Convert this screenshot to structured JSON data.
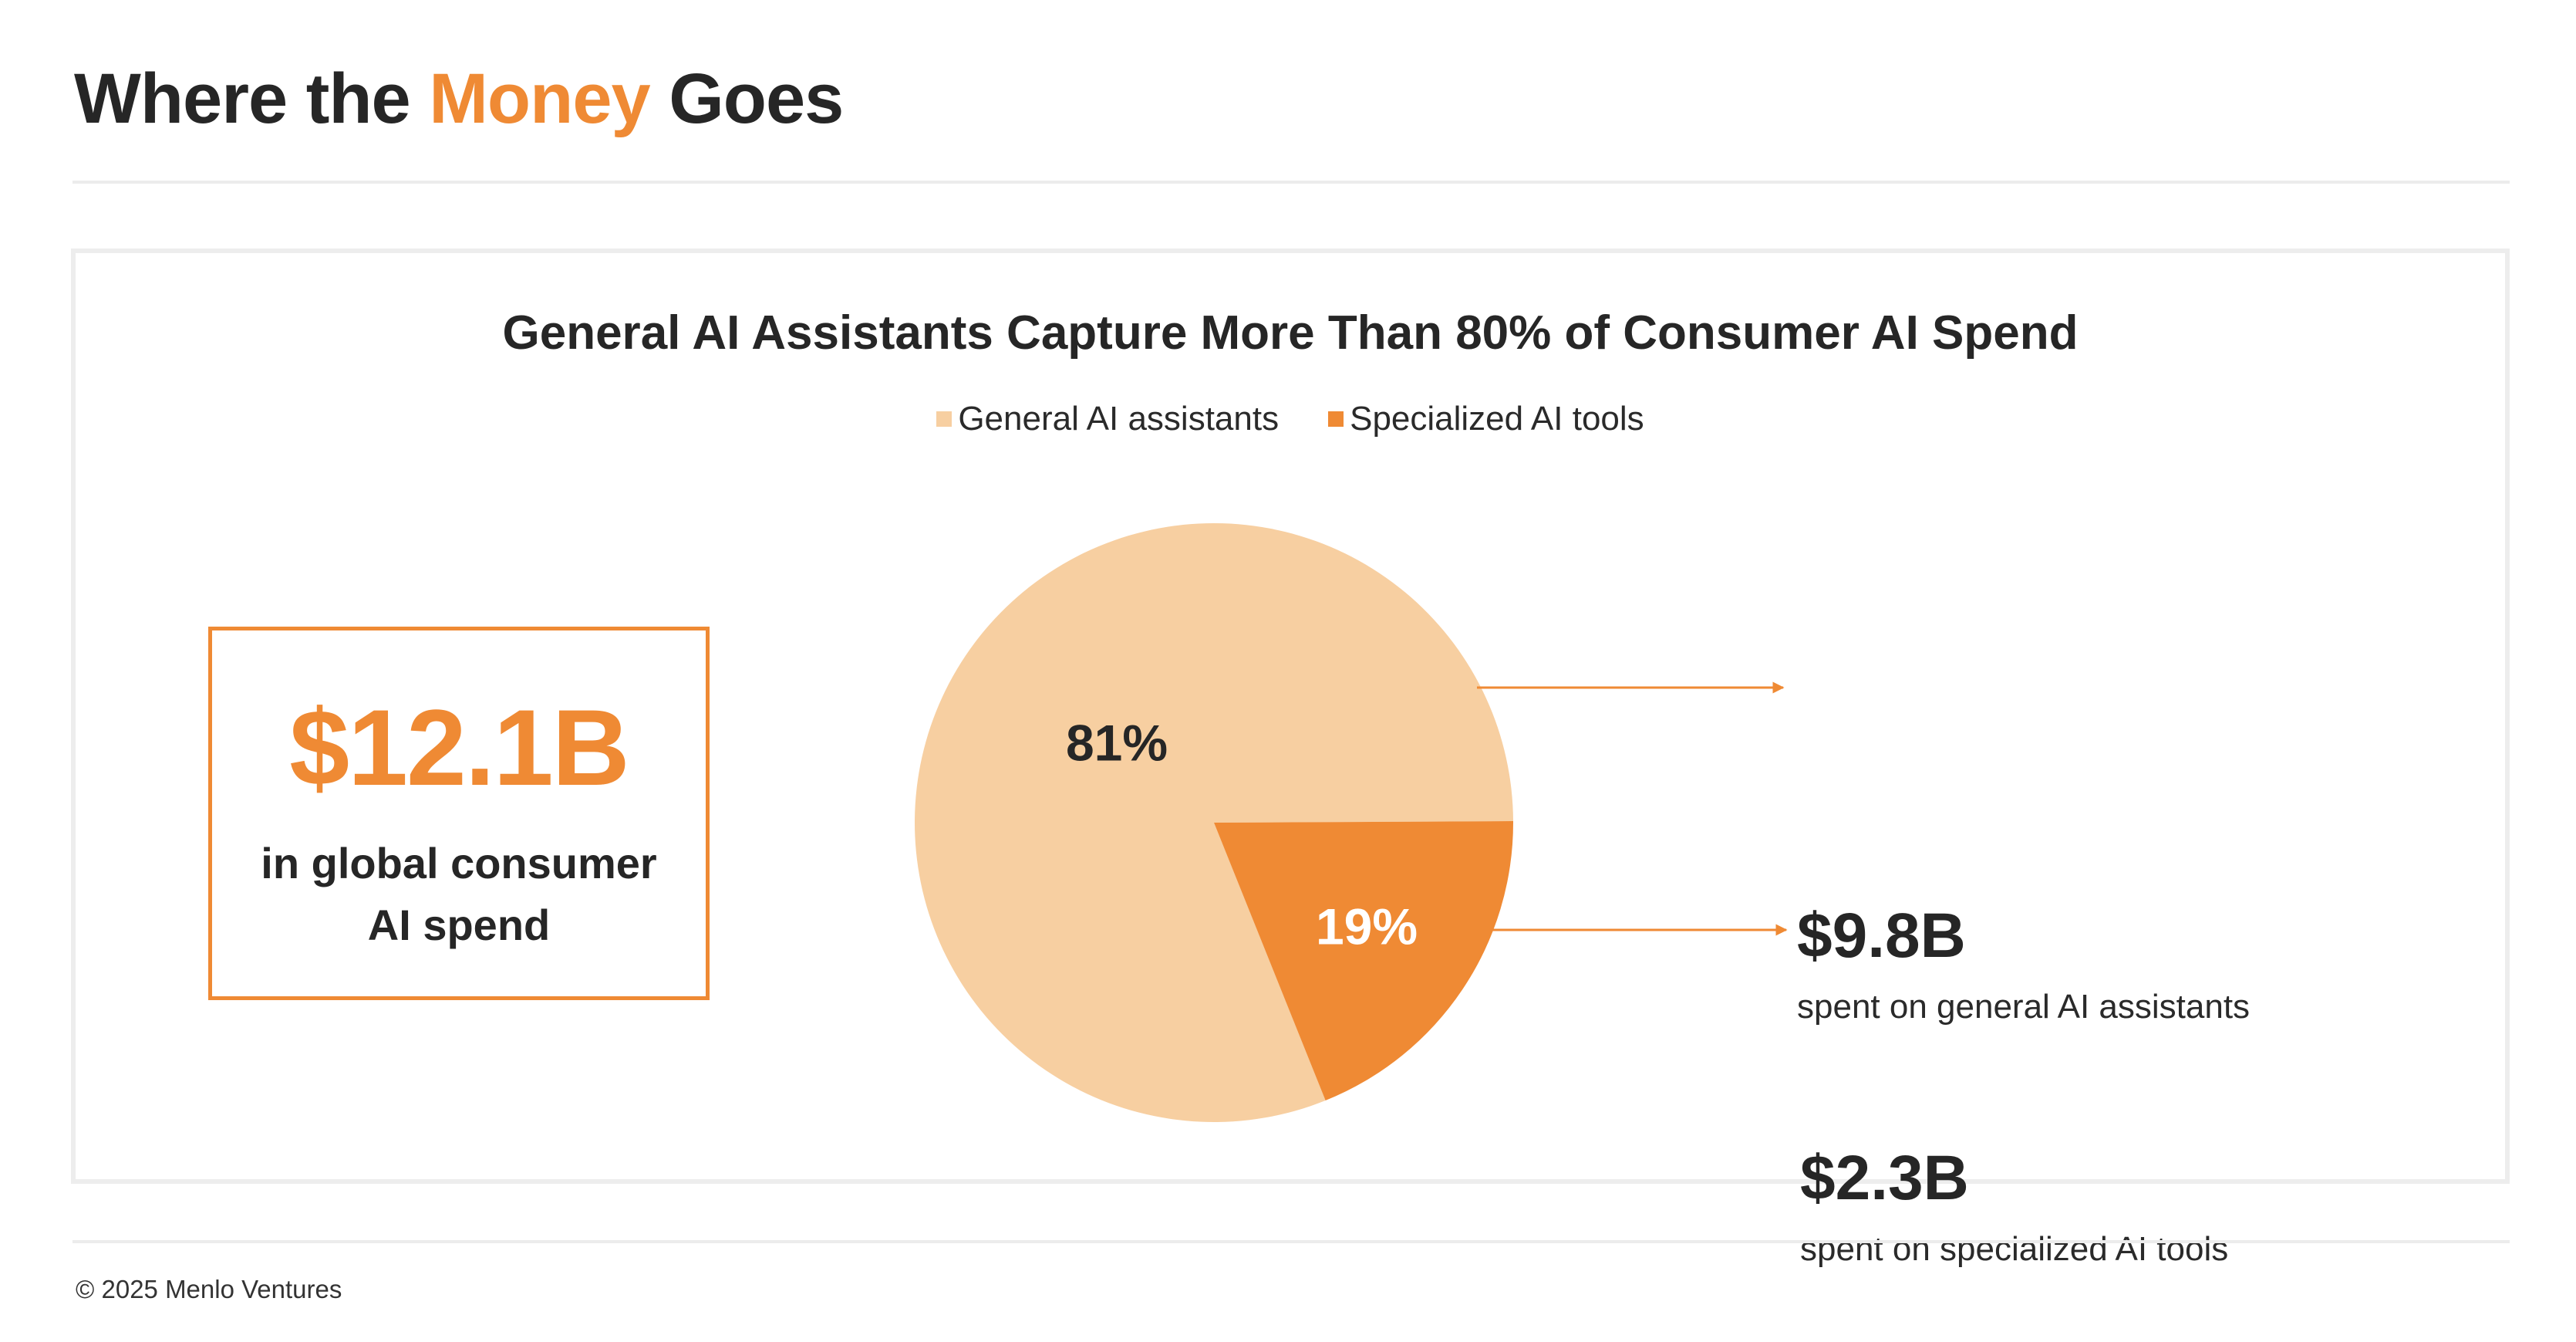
{
  "header": {
    "title_pre": "Where the ",
    "title_accent": "Money",
    "title_post": " Goes"
  },
  "chart_data": {
    "type": "pie",
    "title": "General AI Assistants Capture More Than 80% of Consumer AI Spend",
    "legend_position": "top-center",
    "categories": [
      "General AI assistants",
      "Specialized AI tools"
    ],
    "values": [
      81,
      19
    ],
    "value_labels": [
      "81%",
      "19%"
    ],
    "colors": [
      "#f7cfa1",
      "#ef8a34"
    ],
    "label_colors": [
      "#262626",
      "#ffffff"
    ]
  },
  "total": {
    "value": "$12.1B",
    "caption": "in global consumer AI spend"
  },
  "callouts": [
    {
      "value": "$9.8B",
      "desc": "spent on general AI assistants"
    },
    {
      "value": "$2.3B",
      "desc": "spent on specialized AI tools"
    }
  ],
  "footer": {
    "copyright": "© 2025 Menlo Ventures"
  },
  "colors": {
    "accent": "#ef8a34",
    "text": "#262626",
    "divider": "#ececec"
  }
}
